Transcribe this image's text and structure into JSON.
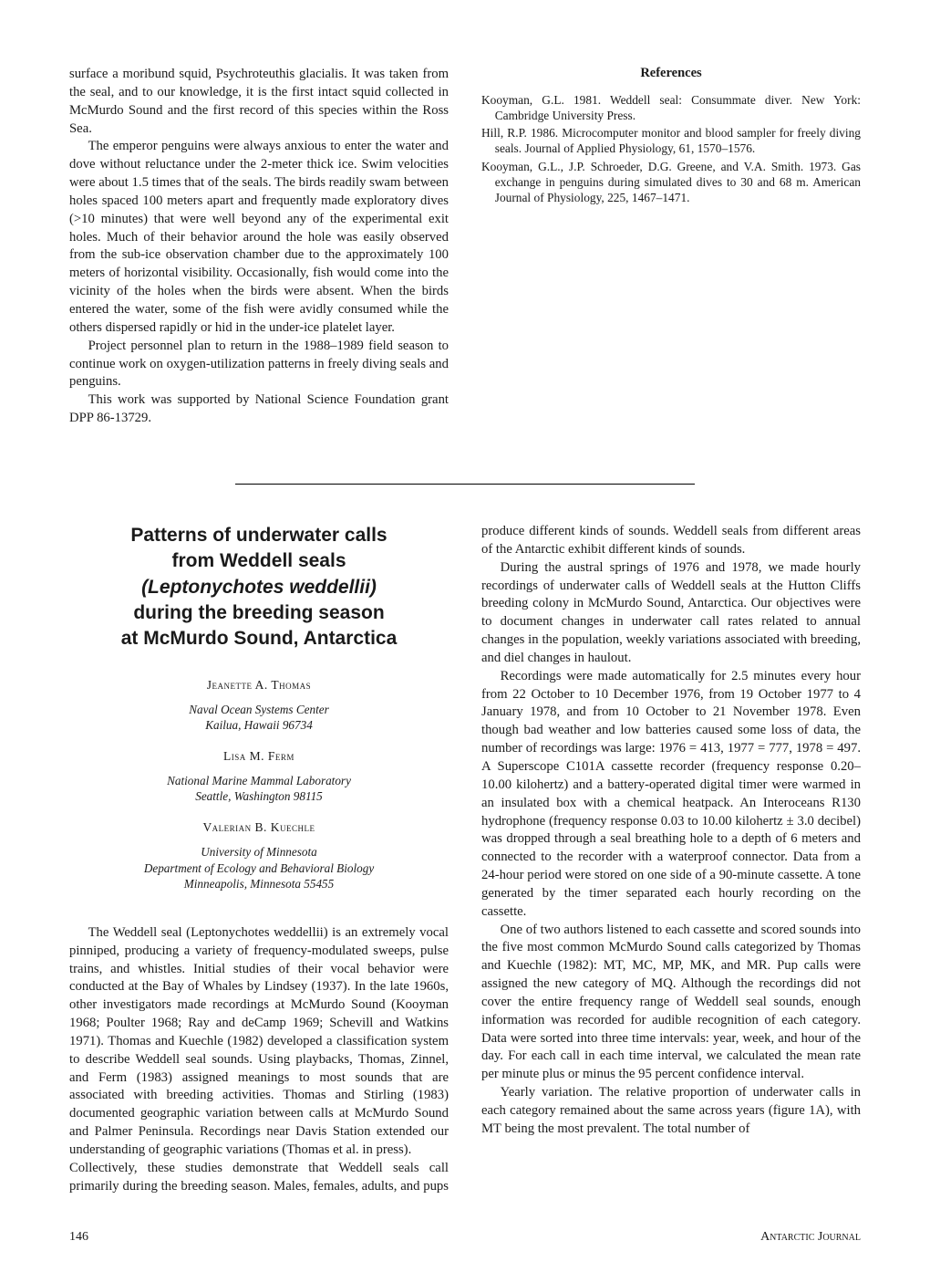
{
  "top": {
    "p1": "surface a moribund squid, Psychroteuthis glacialis. It was taken from the seal, and to our knowledge, it is the first intact squid collected in McMurdo Sound and the first record of this species within the Ross Sea.",
    "p2": "The emperor penguins were always anxious to enter the water and dove without reluctance under the 2-meter thick ice. Swim velocities were about 1.5 times that of the seals. The birds readily swam between holes spaced 100 meters apart and frequently made exploratory dives (>10 minutes) that were well beyond any of the experimental exit holes. Much of their behavior around the hole was easily observed from the sub-ice observation chamber due to the approximately 100 meters of horizontal visibility. Occasionally, fish would come into the vicinity of the holes when the birds were absent. When the birds entered the water, some of the fish were avidly consumed while the others dispersed rapidly or hid in the under-ice platelet layer.",
    "p3": "Project personnel plan to return in the 1988–1989 field season to continue work on oxygen-utilization patterns in freely diving seals and penguins.",
    "p4": "This work was supported by National Science Foundation grant DPP 86-13729.",
    "refs_heading": "References",
    "ref1": "Kooyman, G.L. 1981. Weddell seal: Consummate diver. New York: Cambridge University Press.",
    "ref2": "Hill, R.P. 1986. Microcomputer monitor and blood sampler for freely diving seals. Journal of Applied Physiology, 61, 1570–1576.",
    "ref3": "Kooyman, G.L., J.P. Schroeder, D.G. Greene, and V.A. Smith. 1973. Gas exchange in penguins during simulated dives to 30 and 68 m. American Journal of Physiology, 225, 1467–1471."
  },
  "article": {
    "title_l1": "Patterns of underwater calls",
    "title_l2": "from Weddell seals",
    "title_l3": "(Leptonychotes weddellii)",
    "title_l4": "during the breeding season",
    "title_l5": "at McMurdo Sound, Antarctica",
    "author1": "Jeanette A. Thomas",
    "affil1_l1": "Naval Ocean Systems Center",
    "affil1_l2": "Kailua, Hawaii 96734",
    "author2": "Lisa M. Ferm",
    "affil2_l1": "National Marine Mammal Laboratory",
    "affil2_l2": "Seattle, Washington 98115",
    "author3": "Valerian B. Kuechle",
    "affil3_l1": "University of Minnesota",
    "affil3_l2": "Department of Ecology and Behavioral Biology",
    "affil3_l3": "Minneapolis, Minnesota 55455",
    "body1": "The Weddell seal (Leptonychotes weddellii) is an extremely vocal pinniped, producing a variety of frequency-modulated sweeps, pulse trains, and whistles. Initial studies of their vocal behavior were conducted at the Bay of Whales by Lindsey (1937). In the late 1960s, other investigators made recordings at McMurdo Sound (Kooyman 1968; Poulter 1968; Ray and deCamp 1969; Schevill and Watkins 1971). Thomas and Kuechle (1982) developed a classification system to describe Weddell seal sounds. Using playbacks, Thomas, Zinnel, and Ferm (1983) assigned meanings to most sounds that are associated with breeding activities. Thomas and Stirling (1983) documented geographic variation between calls at McMurdo Sound and Palmer Peninsula. Recordings near Davis Station extended our understanding of geographic variations (Thomas et al. in press).",
    "body2": "Collectively, these studies demonstrate that Weddell seals call primarily during the breeding season. Males, females, adults, and pups produce different kinds of sounds. Weddell seals from different areas of the Antarctic exhibit different kinds of sounds.",
    "body3": "During the austral springs of 1976 and 1978, we made hourly recordings of underwater calls of Weddell seals at the Hutton Cliffs breeding colony in McMurdo Sound, Antarctica. Our objectives were to document changes in underwater call rates related to annual changes in the population, weekly variations associated with breeding, and diel changes in haulout.",
    "body4": "Recordings were made automatically for 2.5 minutes every hour from 22 October to 10 December 1976, from 19 October 1977 to 4 January 1978, and from 10 October to 21 November 1978. Even though bad weather and low batteries caused some loss of data, the number of recordings was large: 1976 = 413, 1977 = 777, 1978 = 497. A Superscope C101A cassette recorder (frequency response 0.20–10.00 kilohertz) and a battery-operated digital timer were warmed in an insulated box with a chemical heatpack. An Interoceans R130 hydrophone (frequency response 0.03 to 10.00 kilohertz ± 3.0 decibel) was dropped through a seal breathing hole to a depth of 6 meters and connected to the recorder with a waterproof connector. Data from a 24-hour period were stored on one side of a 90-minute cassette. A tone generated by the timer separated each hourly recording on the cassette.",
    "body5": "One of two authors listened to each cassette and scored sounds into the five most common McMurdo Sound calls categorized by Thomas and Kuechle (1982): MT, MC, MP, MK, and MR. Pup calls were assigned the new category of MQ. Although the recordings did not cover the entire frequency range of Weddell seal sounds, enough information was recorded for audible recognition of each category. Data were sorted into three time intervals: year, week, and hour of the day. For each call in each time interval, we calculated the mean rate per minute plus or minus the 95 percent confidence interval.",
    "body6": "Yearly variation. The relative proportion of underwater calls in each category remained about the same across years (figure 1A), with MT being the most prevalent. The total number of"
  },
  "footer": {
    "page": "146",
    "journal": "Antarctic Journal"
  }
}
